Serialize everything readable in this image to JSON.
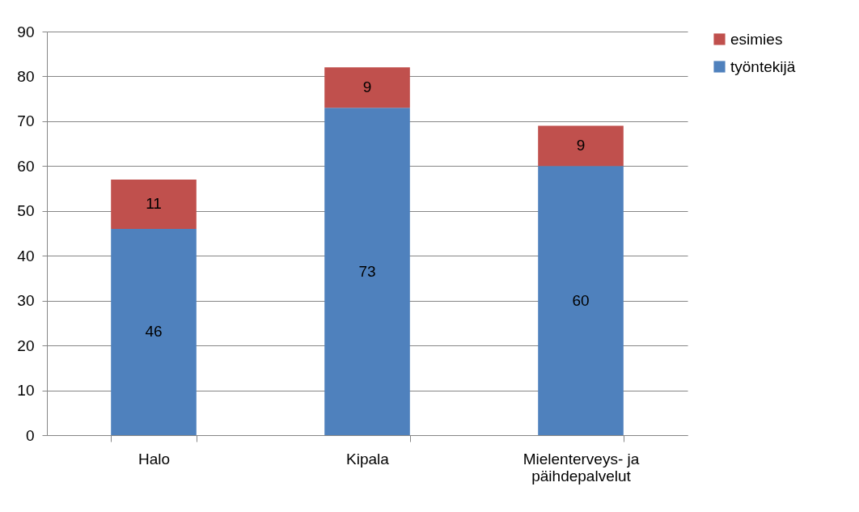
{
  "chart_data": {
    "type": "bar",
    "stacked": true,
    "categories": [
      "Halo",
      "Kipala",
      "Mielenterveys- ja päihdepalvelut"
    ],
    "series": [
      {
        "name": "työntekijä",
        "color": "#4f81bd",
        "values": [
          46,
          73,
          60
        ]
      },
      {
        "name": "esimies",
        "color": "#c0504d",
        "values": [
          11,
          9,
          9
        ]
      }
    ],
    "ylim": [
      0,
      90
    ],
    "yticks": [
      0,
      10,
      20,
      30,
      40,
      50,
      60,
      70,
      80,
      90
    ],
    "grid": "y",
    "legend": "right",
    "data_labels": true
  }
}
